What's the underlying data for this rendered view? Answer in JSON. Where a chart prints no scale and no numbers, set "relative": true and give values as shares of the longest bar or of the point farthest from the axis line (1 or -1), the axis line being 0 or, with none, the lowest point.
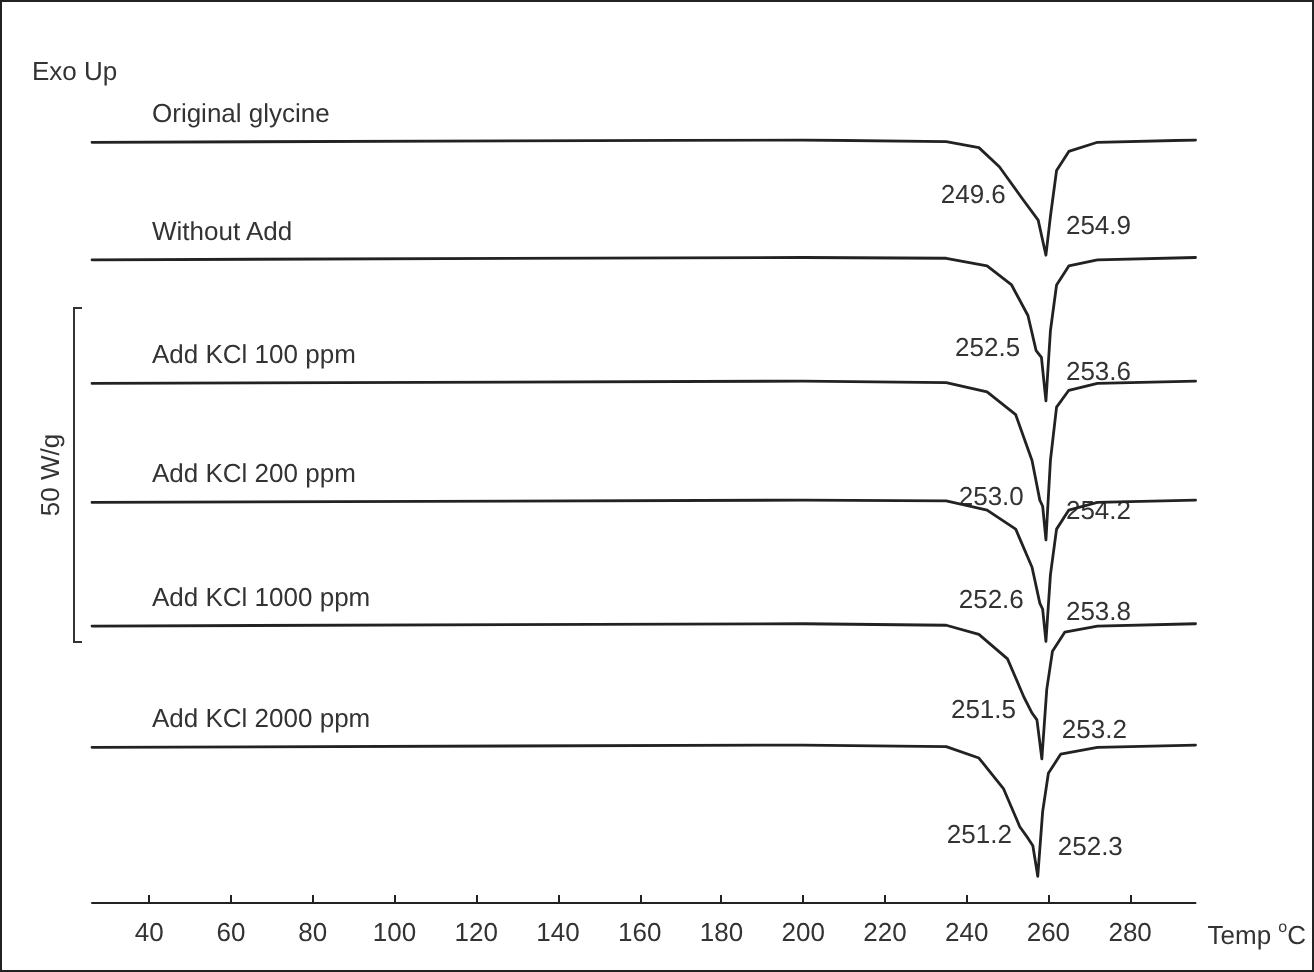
{
  "chart_data": {
    "type": "line",
    "relative": true,
    "xlabel": "Temp $^{o}$C",
    "xlim": [
      26,
      296
    ],
    "xticks": [
      40,
      60,
      80,
      100,
      120,
      140,
      160,
      180,
      200,
      220,
      240,
      260,
      280
    ],
    "x": [
      26,
      200,
      235,
      243,
      248,
      253.5,
      257.5,
      259.4,
      260.5,
      262,
      265,
      272,
      296
    ],
    "series": [
      {
        "name": "Original glycine",
        "color": "#222222",
        "values": [
          0.997,
          1.0,
          0.998,
          0.99,
          0.965,
          0.924,
          0.895,
          0.849,
          0.9,
          0.96,
          0.985,
          0.997,
          1.0
        ]
      },
      {
        "name": "Without Add",
        "color": "#222222",
        "x": [
          26,
          200,
          235,
          245,
          251,
          255,
          257.0,
          258.3,
          259.4,
          260.5,
          262,
          265,
          272,
          296
        ],
        "values": [
          0.843,
          0.846,
          0.845,
          0.835,
          0.81,
          0.77,
          0.724,
          0.715,
          0.658,
          0.75,
          0.81,
          0.835,
          0.843,
          0.846
        ]
      },
      {
        "name": "Add KCl 100 ppm",
        "color": "#222222",
        "x": [
          26,
          200,
          235,
          245,
          252,
          256,
          257.9,
          258.6,
          259.4,
          260.5,
          262,
          265,
          272,
          296
        ],
        "values": [
          0.681,
          0.684,
          0.682,
          0.67,
          0.64,
          0.58,
          0.528,
          0.52,
          0.476,
          0.58,
          0.65,
          0.672,
          0.681,
          0.684
        ]
      },
      {
        "name": "Add KCl 200 ppm",
        "color": "#222222",
        "x": [
          26,
          200,
          235,
          245,
          252,
          256,
          257.9,
          258.6,
          259.4,
          260.5,
          262,
          265,
          272,
          296
        ],
        "values": [
          0.525,
          0.528,
          0.527,
          0.515,
          0.49,
          0.44,
          0.393,
          0.385,
          0.343,
          0.43,
          0.49,
          0.515,
          0.525,
          0.528
        ]
      },
      {
        "name": "Add KCl 1000 ppm",
        "color": "#222222",
        "x": [
          26,
          200,
          235,
          243,
          250,
          254,
          256,
          257.2,
          258.4,
          259.6,
          261,
          264,
          272,
          296
        ],
        "values": [
          0.363,
          0.366,
          0.364,
          0.352,
          0.32,
          0.27,
          0.249,
          0.24,
          0.189,
          0.28,
          0.33,
          0.355,
          0.363,
          0.366
        ]
      },
      {
        "name": "Add KCl 2000 ppm",
        "color": "#222222",
        "x": [
          26,
          200,
          235,
          243,
          249,
          253,
          255,
          256.2,
          257.4,
          258.6,
          260,
          263,
          272,
          296
        ],
        "values": [
          0.204,
          0.207,
          0.205,
          0.19,
          0.15,
          0.1,
          0.085,
          0.075,
          0.035,
          0.12,
          0.17,
          0.195,
          0.204,
          0.207
        ]
      }
    ],
    "annotations": [
      "Exo Up",
      "50 W/g",
      {
        "text": "249.6",
        "x": 253.5,
        "y": 0.924
      },
      {
        "text": "254.9",
        "x": 259.4,
        "y": 0.849
      },
      {
        "text": "252.5",
        "x": 257.0,
        "y": 0.724
      },
      {
        "text": "253.6",
        "x": 259.4,
        "y": 0.658
      },
      {
        "text": "253.0",
        "x": 257.9,
        "y": 0.528
      },
      {
        "text": "254.2",
        "x": 259.4,
        "y": 0.476
      },
      {
        "text": "252.6",
        "x": 257.9,
        "y": 0.393
      },
      {
        "text": "253.8",
        "x": 259.4,
        "y": 0.343
      },
      {
        "text": "251.5",
        "x": 256.0,
        "y": 0.249
      },
      {
        "text": "253.2",
        "x": 258.4,
        "y": 0.189
      },
      {
        "text": "251.2",
        "x": 255.0,
        "y": 0.085
      },
      {
        "text": "252.3",
        "x": 257.4,
        "y": 0.035
      }
    ]
  }
}
